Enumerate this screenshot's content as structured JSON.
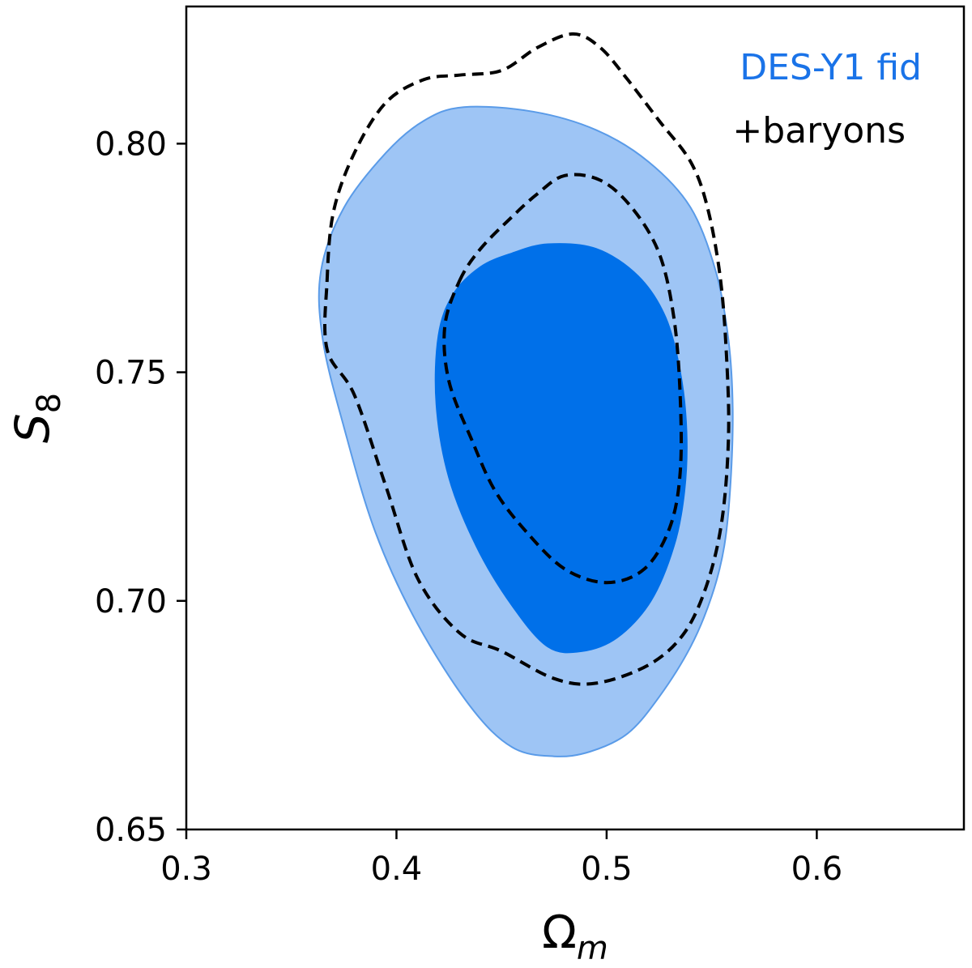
{
  "chart_data": {
    "type": "contour",
    "xlabel": {
      "base": "Ω",
      "sub": "m"
    },
    "ylabel": {
      "base": "S",
      "sub": "8"
    },
    "xlim": [
      0.3,
      0.67
    ],
    "ylim": [
      0.65,
      0.83
    ],
    "xticks": [
      {
        "value": 0.3,
        "label": "0.3"
      },
      {
        "value": 0.4,
        "label": "0.4"
      },
      {
        "value": 0.5,
        "label": "0.5"
      },
      {
        "value": 0.6,
        "label": "0.6"
      }
    ],
    "yticks": [
      {
        "value": 0.65,
        "label": "0.65"
      },
      {
        "value": 0.7,
        "label": "0.70"
      },
      {
        "value": 0.75,
        "label": "0.75"
      },
      {
        "value": 0.8,
        "label": "0.80"
      }
    ],
    "legend_placement": "top-right",
    "series": [
      {
        "name": "DES-Y1 fid",
        "style": "filled",
        "legend_color": "#1a73e8",
        "contours": [
          {
            "level": "95%",
            "fill": "#9ec5f5",
            "stroke": "#5a9be8",
            "points": [
              [
                0.432,
                0.808
              ],
              [
                0.465,
                0.807
              ],
              [
                0.495,
                0.803
              ],
              [
                0.52,
                0.796
              ],
              [
                0.54,
                0.786
              ],
              [
                0.552,
                0.772
              ],
              [
                0.558,
                0.757
              ],
              [
                0.56,
                0.742
              ],
              [
                0.559,
                0.726
              ],
              [
                0.556,
                0.712
              ],
              [
                0.55,
                0.701
              ],
              [
                0.54,
                0.69
              ],
              [
                0.525,
                0.679
              ],
              [
                0.51,
                0.671
              ],
              [
                0.492,
                0.667
              ],
              [
                0.475,
                0.666
              ],
              [
                0.455,
                0.668
              ],
              [
                0.435,
                0.677
              ],
              [
                0.41,
                0.695
              ],
              [
                0.39,
                0.715
              ],
              [
                0.375,
                0.738
              ],
              [
                0.365,
                0.757
              ],
              [
                0.364,
                0.772
              ],
              [
                0.375,
                0.786
              ],
              [
                0.395,
                0.798
              ],
              [
                0.413,
                0.805
              ]
            ]
          },
          {
            "level": "68%",
            "fill": "#0070e9",
            "stroke": "#0070e9",
            "points": [
              [
                0.472,
                0.778
              ],
              [
                0.495,
                0.777
              ],
              [
                0.515,
                0.771
              ],
              [
                0.528,
                0.762
              ],
              [
                0.535,
                0.75
              ],
              [
                0.538,
                0.737
              ],
              [
                0.537,
                0.724
              ],
              [
                0.532,
                0.712
              ],
              [
                0.521,
                0.7
              ],
              [
                0.505,
                0.692
              ],
              [
                0.488,
                0.689
              ],
              [
                0.472,
                0.69
              ],
              [
                0.455,
                0.699
              ],
              [
                0.438,
                0.712
              ],
              [
                0.425,
                0.727
              ],
              [
                0.419,
                0.743
              ],
              [
                0.42,
                0.758
              ],
              [
                0.427,
                0.767
              ],
              [
                0.44,
                0.773
              ],
              [
                0.455,
                0.776
              ]
            ]
          }
        ]
      },
      {
        "name": "+baryons",
        "style": "dashed",
        "legend_color": "#000000",
        "contours": [
          {
            "level": "95%",
            "stroke": "#000000",
            "points": [
              [
                0.367,
                0.77
              ],
              [
                0.37,
                0.785
              ],
              [
                0.38,
                0.798
              ],
              [
                0.395,
                0.809
              ],
              [
                0.413,
                0.814
              ],
              [
                0.43,
                0.815
              ],
              [
                0.45,
                0.816
              ],
              [
                0.467,
                0.821
              ],
              [
                0.484,
                0.824
              ],
              [
                0.497,
                0.821
              ],
              [
                0.51,
                0.814
              ],
              [
                0.525,
                0.805
              ],
              [
                0.54,
                0.796
              ],
              [
                0.548,
                0.786
              ],
              [
                0.554,
                0.771
              ],
              [
                0.557,
                0.754
              ],
              [
                0.558,
                0.736
              ],
              [
                0.555,
                0.718
              ],
              [
                0.548,
                0.704
              ],
              [
                0.537,
                0.693
              ],
              [
                0.52,
                0.686
              ],
              [
                0.495,
                0.682
              ],
              [
                0.475,
                0.683
              ],
              [
                0.45,
                0.689
              ],
              [
                0.43,
                0.693
              ],
              [
                0.41,
                0.705
              ],
              [
                0.395,
                0.725
              ],
              [
                0.38,
                0.745
              ],
              [
                0.367,
                0.755
              ]
            ]
          },
          {
            "level": "68%",
            "stroke": "#000000",
            "points": [
              [
                0.43,
                0.77
              ],
              [
                0.44,
                0.777
              ],
              [
                0.455,
                0.784
              ],
              [
                0.467,
                0.789
              ],
              [
                0.48,
                0.793
              ],
              [
                0.497,
                0.792
              ],
              [
                0.512,
                0.786
              ],
              [
                0.525,
                0.776
              ],
              [
                0.532,
                0.762
              ],
              [
                0.535,
                0.745
              ],
              [
                0.535,
                0.728
              ],
              [
                0.53,
                0.716
              ],
              [
                0.518,
                0.707
              ],
              [
                0.5,
                0.704
              ],
              [
                0.48,
                0.707
              ],
              [
                0.462,
                0.715
              ],
              [
                0.447,
                0.724
              ],
              [
                0.436,
                0.735
              ],
              [
                0.425,
                0.748
              ],
              [
                0.423,
                0.76
              ]
            ]
          }
        ]
      }
    ]
  }
}
